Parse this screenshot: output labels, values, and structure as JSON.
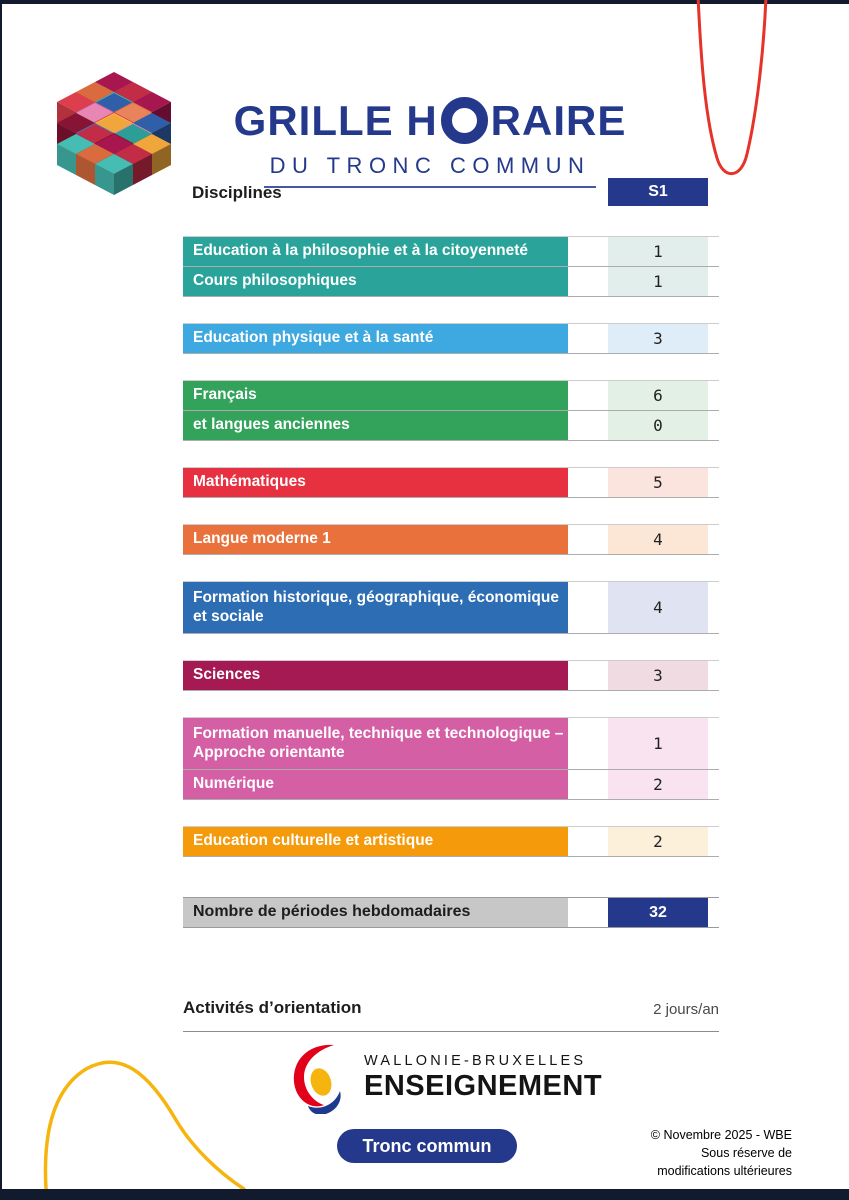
{
  "title": {
    "pre": "GRILLE H",
    "o": "O",
    "post": "RAIRE"
  },
  "subtitle": "DU TRONC COMMUN",
  "header": {
    "disciplines_label": "Disciplines",
    "column_label": "S1"
  },
  "table": {
    "groups": [
      {
        "color": "#2AA49B",
        "tint": "#E2EEEC",
        "rows": [
          {
            "label": "Education à la philosophie et à la citoyenneté",
            "value": "1"
          },
          {
            "label": "Cours philosophiques",
            "value": "1"
          }
        ]
      },
      {
        "color": "#3EA8E0",
        "tint": "#DFEDF9",
        "rows": [
          {
            "label": "Education physique et à la santé",
            "value": "3"
          }
        ]
      },
      {
        "color": "#33A35C",
        "tint": "#E3F0E5",
        "rows": [
          {
            "label": "Français",
            "value": "6"
          },
          {
            "label": "et langues anciennes",
            "value": "0"
          }
        ]
      },
      {
        "color": "#E73141",
        "tint": "#FBE4DD",
        "rows": [
          {
            "label": "Mathématiques",
            "value": "5"
          }
        ]
      },
      {
        "color": "#E8713C",
        "tint": "#FCE7D6",
        "rows": [
          {
            "label": "Langue moderne 1",
            "value": "4"
          }
        ]
      },
      {
        "color": "#2D6DB3",
        "tint": "#DFE3F2",
        "rows": [
          {
            "label": "Formation historique, géographique, économique et sociale",
            "value": "4",
            "tall": true
          }
        ]
      },
      {
        "color": "#A51A52",
        "tint": "#EFDBE1",
        "rows": [
          {
            "label": "Sciences",
            "value": "3"
          }
        ]
      },
      {
        "color": "#D55FA5",
        "tint": "#F9E3F1",
        "rows": [
          {
            "label": "Formation manuelle, technique et technologique – Approche orientante",
            "value": "1",
            "tall": true
          },
          {
            "label": "Numérique",
            "value": "2"
          }
        ]
      },
      {
        "color": "#F49A0B",
        "tint": "#FDF0DB",
        "rows": [
          {
            "label": "Education culturelle et artistique",
            "value": "2"
          }
        ]
      }
    ],
    "total": {
      "label": "Nombre de périodes hebdomadaires",
      "value": "32"
    }
  },
  "orientation": {
    "label": "Activités d’orientation",
    "value": "2 jours/an"
  },
  "footer": {
    "brand_line1": "WALLONIE-BRUXELLES",
    "brand_line2": "ENSEIGNEMENT",
    "badge_label": "Tronc commun",
    "copyright_lines": [
      "© Novembre 2025 - WBE",
      "Sous réserve de",
      "modifications ultérieures"
    ]
  },
  "colors": {
    "accent_navy": "#24398B",
    "frame_dark": "#121B2E",
    "line_gray": "#ACACAC",
    "total_gray": "#C7C7C7",
    "text_dark": "#1D1D1B",
    "muted_gray": "#4A4A4A",
    "red_curve": "#E63229",
    "yellow_curve": "#F6B40E",
    "wbe_red": "#E2001A",
    "wbe_yellow": "#F6B40E",
    "wbe_blue": "#1D3A8F",
    "cube_palette": [
      "#F0A63A",
      "#F3C04C",
      "#DD3E4B",
      "#C22C46",
      "#3E7BC7",
      "#2F5FA8",
      "#45BDB2",
      "#2D9E95",
      "#E886B4",
      "#D4589F",
      "#A81650",
      "#871434",
      "#E8845C",
      "#D96B3F"
    ]
  }
}
